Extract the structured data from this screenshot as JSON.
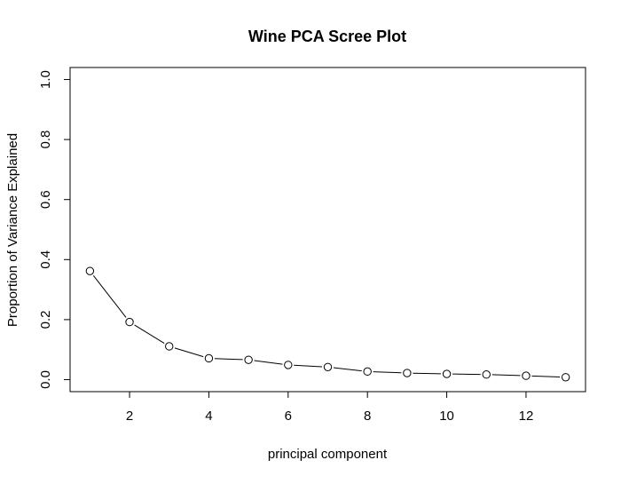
{
  "chart_data": {
    "type": "line",
    "title": "Wine PCA Scree Plot",
    "xlabel": "principal component",
    "ylabel": "Proportion of Variance Explained",
    "x": [
      1,
      2,
      3,
      4,
      5,
      6,
      7,
      8,
      9,
      10,
      11,
      12,
      13
    ],
    "series": [
      {
        "values": [
          0.362,
          0.192,
          0.111,
          0.071,
          0.066,
          0.049,
          0.042,
          0.027,
          0.022,
          0.019,
          0.017,
          0.013,
          0.008
        ]
      }
    ],
    "x_ticks": [
      "2",
      "4",
      "6",
      "8",
      "10",
      "12"
    ],
    "y_ticks": [
      "0.0",
      "0.2",
      "0.4",
      "0.6",
      "0.8",
      "1.0"
    ],
    "xlim": [
      0.5,
      13.5
    ],
    "ylim": [
      -0.04,
      1.04
    ],
    "grid": false,
    "marker": "open-circle",
    "line_color": "#000000"
  }
}
